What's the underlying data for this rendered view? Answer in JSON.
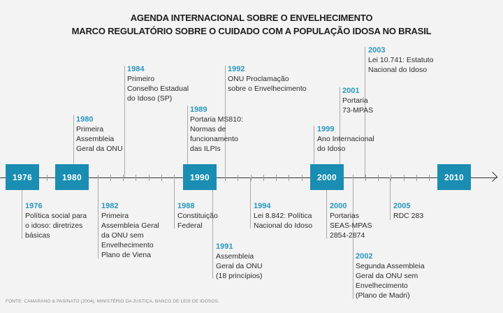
{
  "title_line1": "AGENDA INTERNACIONAL SOBRE O ENVELHECIMENTO",
  "title_line2": "MARCO REGULATÓRIO SOBRE O CUIDADO COM A POPULAÇÃO IDOSA NO BRASIL",
  "axis_years": [
    "1976",
    "1980",
    "1990",
    "2000",
    "2010"
  ],
  "accent_color": "#1a8db3",
  "events": [
    {
      "year": "1976",
      "side": "below",
      "lines": [
        "Política social para",
        "o idoso: diretrizes",
        "básicas"
      ]
    },
    {
      "year": "1980",
      "side": "above",
      "lines": [
        "Primeira",
        "Assembleia",
        "Geral da ONU"
      ]
    },
    {
      "year": "1982",
      "side": "below",
      "lines": [
        "Primeira",
        "Assembleia Geral",
        "da ONU sem",
        "Envelhecimento",
        "Plano de Viena"
      ]
    },
    {
      "year": "1984",
      "side": "above",
      "lines": [
        "Primeiro",
        "Conselho Estadual",
        "do Idoso (SP)"
      ]
    },
    {
      "year": "1988",
      "side": "below",
      "lines": [
        "Constituição",
        "Federal"
      ]
    },
    {
      "year": "1989",
      "side": "above",
      "lines": [
        "Portaria MS810:",
        "Normas de",
        "funcionamento",
        "das ILPIs"
      ]
    },
    {
      "year": "1991",
      "side": "below",
      "lines": [
        "Assembleia",
        "Geral da ONU",
        "(18 princípios)"
      ]
    },
    {
      "year": "1992",
      "side": "above",
      "lines": [
        "ONU Proclamação",
        "sobre o Envelhecimento"
      ]
    },
    {
      "year": "1994",
      "side": "below",
      "lines": [
        "Lei 8.842: Política",
        "Nacional do Idoso"
      ]
    },
    {
      "year": "1999",
      "side": "above",
      "lines": [
        "Ano Internacional",
        "do Idoso"
      ]
    },
    {
      "year": "2000",
      "side": "below",
      "lines": [
        "Portarias",
        "SEAS-MPAS",
        "2854-2874"
      ]
    },
    {
      "year": "2001",
      "side": "above",
      "lines": [
        "Portaria",
        "73-MPAS"
      ]
    },
    {
      "year": "2002",
      "side": "below",
      "lines": [
        "Segunda Assembleia",
        "Geral da ONU sem",
        "Envelhecimento",
        "(Plano de Madri)"
      ]
    },
    {
      "year": "2003",
      "side": "above",
      "lines": [
        "Lei 10.741: Estatuto",
        "Nacional do Idoso"
      ]
    },
    {
      "year": "2005",
      "side": "below",
      "lines": [
        "RDC 283"
      ]
    }
  ],
  "source": "FONTE: CAMARANO & PASINATO (2004); MINISTÉRIO DA JUSTIÇA, BANCO DE LEIS DE IDOSOS."
}
